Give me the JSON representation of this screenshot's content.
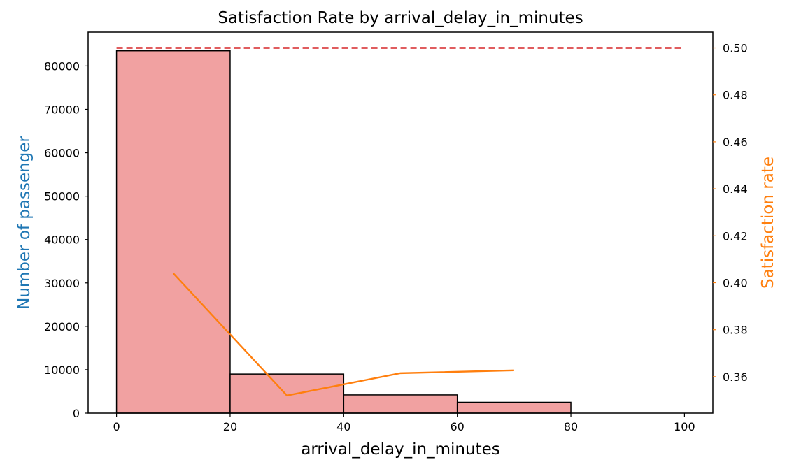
{
  "chart_data": {
    "type": "bar",
    "title": "Satisfaction Rate by arrival_delay_in_minutes",
    "xlabel": "arrival_delay_in_minutes",
    "ylabel_left": "Number of passenger",
    "ylabel_right": "Satisfaction rate",
    "xlim": [
      -5,
      105
    ],
    "ylim_left": [
      0,
      87800
    ],
    "ylim_right": [
      0.3445,
      0.5067
    ],
    "x_ticks": [
      0,
      20,
      40,
      60,
      80,
      100
    ],
    "x_tick_labels": [
      "0",
      "20",
      "40",
      "60",
      "80",
      "100"
    ],
    "y_left_ticks": [
      0,
      10000,
      20000,
      30000,
      40000,
      50000,
      60000,
      70000,
      80000
    ],
    "y_left_tick_labels": [
      "0",
      "10000",
      "20000",
      "30000",
      "40000",
      "50000",
      "60000",
      "70000",
      "80000"
    ],
    "y_right_ticks": [
      0.36,
      0.38,
      0.4,
      0.42,
      0.44,
      0.46,
      0.48,
      0.5
    ],
    "y_right_tick_labels": [
      "0.36",
      "0.38",
      "0.40",
      "0.42",
      "0.44",
      "0.46",
      "0.48",
      "0.50"
    ],
    "histogram": {
      "bins": [
        {
          "start": 0,
          "end": 20,
          "count": 83500
        },
        {
          "start": 20,
          "end": 40,
          "count": 9000
        },
        {
          "start": 40,
          "end": 60,
          "count": 4200
        },
        {
          "start": 60,
          "end": 80,
          "count": 2500
        },
        {
          "start": 80,
          "end": 100,
          "count": 0
        }
      ]
    },
    "series": [
      {
        "axis": "right",
        "x": [
          10,
          30,
          50,
          70
        ],
        "y": [
          0.404,
          0.352,
          0.3615,
          0.3627
        ]
      },
      {
        "axis": "right",
        "style": "dashed",
        "x": [
          0,
          100
        ],
        "y": [
          0.5,
          0.5
        ]
      }
    ],
    "grid": false,
    "colors": {
      "bar_fill": "#f1a1a1",
      "bar_edge": "#000000",
      "rate_line": "#ff7f0e",
      "reference_line": "#d62728",
      "left_label": "#1f77b4",
      "right_label": "#ff7f0e",
      "right_ticks": "#ff7f0e"
    }
  }
}
